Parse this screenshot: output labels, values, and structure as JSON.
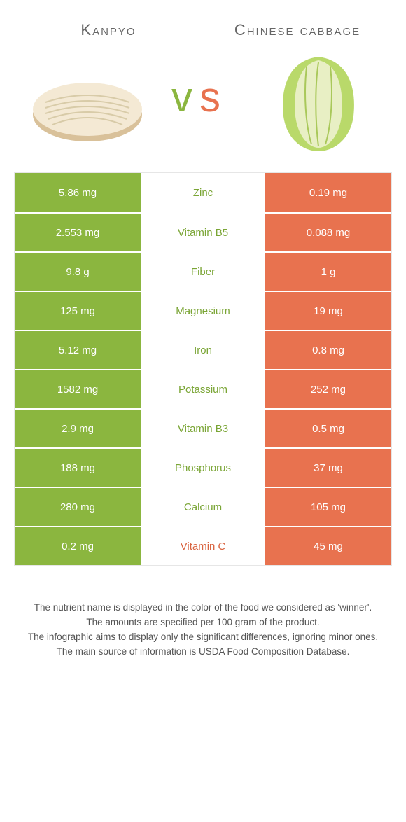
{
  "colors": {
    "left": "#8bb63f",
    "right": "#e8724f",
    "left_text": "#7aa535",
    "right_text": "#d9633f",
    "vs_left": "#8bb63f",
    "vs_right": "#e8724f"
  },
  "foods": {
    "left": "Kanpyo",
    "right": "Chinese cabbage"
  },
  "vs": "vs",
  "rows": [
    {
      "left": "5.86 mg",
      "label": "Zinc",
      "right": "0.19 mg",
      "winner": "left"
    },
    {
      "left": "2.553 mg",
      "label": "Vitamin B5",
      "right": "0.088 mg",
      "winner": "left"
    },
    {
      "left": "9.8 g",
      "label": "Fiber",
      "right": "1 g",
      "winner": "left"
    },
    {
      "left": "125 mg",
      "label": "Magnesium",
      "right": "19 mg",
      "winner": "left"
    },
    {
      "left": "5.12 mg",
      "label": "Iron",
      "right": "0.8 mg",
      "winner": "left"
    },
    {
      "left": "1582 mg",
      "label": "Potassium",
      "right": "252 mg",
      "winner": "left"
    },
    {
      "left": "2.9 mg",
      "label": "Vitamin B3",
      "right": "0.5 mg",
      "winner": "left"
    },
    {
      "left": "188 mg",
      "label": "Phosphorus",
      "right": "37 mg",
      "winner": "left"
    },
    {
      "left": "280 mg",
      "label": "Calcium",
      "right": "105 mg",
      "winner": "left"
    },
    {
      "left": "0.2 mg",
      "label": "Vitamin C",
      "right": "45 mg",
      "winner": "right"
    }
  ],
  "footer": {
    "l1": "The nutrient name is displayed in the color of the food we considered as 'winner'.",
    "l2": "The amounts are specified per 100 gram of the product.",
    "l3": "The infographic aims to display only the significant differences, ignoring minor ones.",
    "l4": "The main source of information is USDA Food Composition Database."
  }
}
